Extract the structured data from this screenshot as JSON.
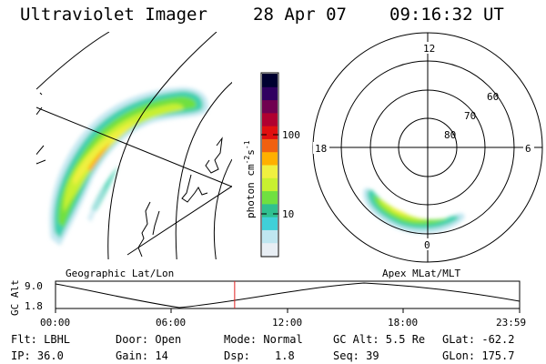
{
  "header": {
    "title": "Ultraviolet Imager",
    "date": "28 Apr 07",
    "time": "09:16:32 UT"
  },
  "colorbar": {
    "unit": "photon cm",
    "unit_exp1": "-2",
    "unit_s": "s",
    "unit_exp2": "-1",
    "tick_100": "100",
    "tick_10": "10",
    "colors": [
      "#e8eef4",
      "#bfe6f0",
      "#40d0d8",
      "#30c090",
      "#70e040",
      "#c8f030",
      "#f0f040",
      "#ffb000",
      "#f06010",
      "#e01010",
      "#b00030",
      "#700050",
      "#300060",
      "#000030"
    ]
  },
  "polar_plot": {
    "mlt_12": "12",
    "mlt_18": "18",
    "mlt_6": "6",
    "mlt_0": "0",
    "lat_60": "60",
    "lat_70": "70",
    "lat_80": "80"
  },
  "panel_labels": {
    "left": "Geographic Lat/Lon",
    "right": "Apex MLat/MLT"
  },
  "altitude_plot": {
    "ylabel": "GC Alt",
    "y_max": "9.0",
    "y_min": "1.8",
    "x_ticks": [
      "00:00",
      "06:00",
      "12:00",
      "18:00",
      "23:59"
    ],
    "current_time_fraction": 0.386
  },
  "info": {
    "flt": "Flt: LBHL",
    "ip": "IP: 36.0",
    "door": "Door: Open",
    "gain": "Gain: 14",
    "mode": "Mode: Normal",
    "dsp_label": "Dsp:",
    "dsp_value": "1.8",
    "gc_alt": "GC Alt: 5.5 Re",
    "seq": "Seq: 39",
    "glat": "GLat: -62.2",
    "glon": "GLon: 175.7"
  }
}
